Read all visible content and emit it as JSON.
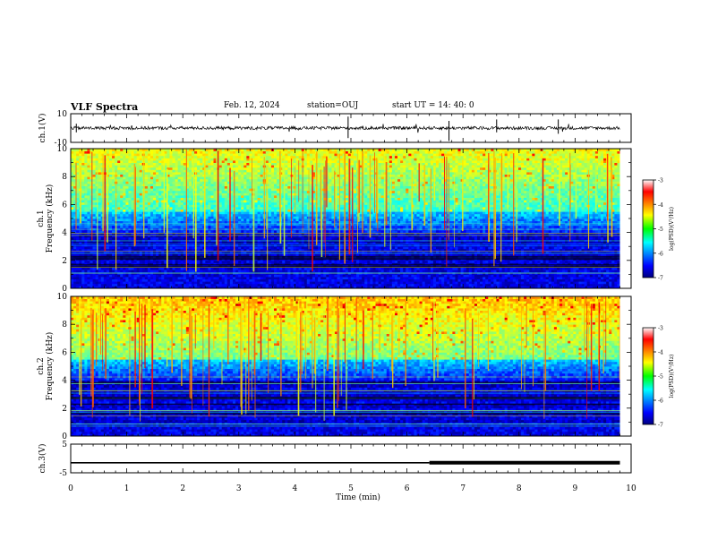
{
  "header": {
    "title": "VLF Spectra",
    "date": "Feb. 12, 2024",
    "station": "station=OUJ",
    "start_time": "start UT =  14: 40: 0"
  },
  "chart_data": [
    {
      "type": "line",
      "panel": "ch1-waveform",
      "ylabel": "ch.1(V)",
      "ylim": [
        -10,
        10
      ],
      "yticks": [
        "10",
        "-10"
      ],
      "xlim": [
        0,
        10
      ],
      "series": [
        {
          "values_description_free": true,
          "x": [
            0,
            9.8
          ],
          "y": [
            0,
            0
          ]
        }
      ],
      "color": "#000000"
    },
    {
      "type": "heatmap",
      "panel": "ch1-spectrogram",
      "ylabel": "ch.1 Frequency (kHz)",
      "ylabel_lines": [
        "ch.1",
        "Frequency (kHz)"
      ],
      "ylim": [
        0,
        10
      ],
      "yticks": [
        "0",
        "2",
        "4",
        "6",
        "8",
        "10"
      ],
      "xlim": [
        0,
        10
      ],
      "data_xlim": [
        0,
        9.8
      ],
      "colorbar": {
        "label": "log(PSD)(V²/Hz)",
        "range": [
          -7,
          -3
        ],
        "ticks": [
          "-3",
          "-4",
          "-5",
          "-6",
          "-7"
        ]
      }
    },
    {
      "type": "heatmap",
      "panel": "ch2-spectrogram",
      "ylabel": "ch.2 Frequency (kHz)",
      "ylabel_lines": [
        "ch.2",
        "Frequency (kHz)"
      ],
      "ylim": [
        0,
        10
      ],
      "yticks": [
        "0",
        "2",
        "4",
        "6",
        "8",
        "10"
      ],
      "xlim": [
        0,
        10
      ],
      "data_xlim": [
        0,
        9.8
      ],
      "colorbar": {
        "label": "log(PSD)(V²/Hz)",
        "range": [
          -7,
          -3
        ],
        "ticks": [
          "-3",
          "-4",
          "-5",
          "-6",
          "-7"
        ]
      }
    },
    {
      "type": "line",
      "panel": "ch3-waveform",
      "ylabel": "ch.3(V)",
      "ylim": [
        -5,
        5
      ],
      "yticks": [
        "5",
        "-5"
      ],
      "xlim": [
        0,
        10
      ],
      "series": [
        {
          "x": [
            0,
            6.4,
            6.4,
            9.8
          ],
          "y": [
            -1.5,
            -1.5,
            -1.5,
            -1.5
          ]
        }
      ],
      "thick_from": 6.4
    }
  ],
  "xaxis": {
    "label": "Time (min)",
    "ticks": [
      "0",
      "1",
      "2",
      "3",
      "4",
      "5",
      "6",
      "7",
      "8",
      "9",
      "10"
    ]
  },
  "colors": {
    "low": "#00007f",
    "mid": "#00ff00",
    "high": "#ff0000",
    "background": "#ffffff"
  }
}
